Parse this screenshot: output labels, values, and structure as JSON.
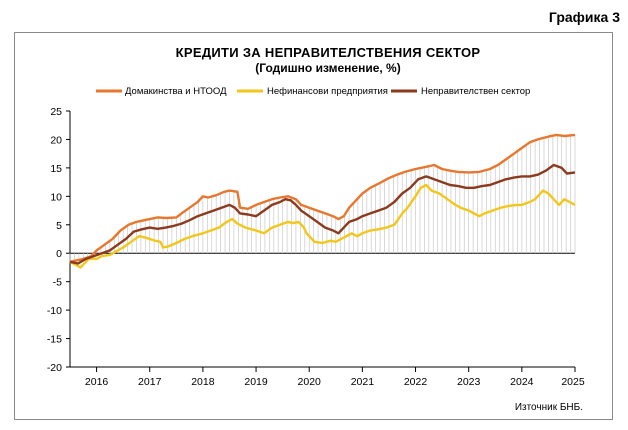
{
  "figure_label": "Графика 3",
  "chart_data": {
    "type": "line",
    "title": "КРЕДИТИ ЗА НЕПРАВИТЕЛСТВЕНИЯ  СЕКТОР",
    "subtitle": "(Годишно  изменение, %)",
    "source": "Източник БНБ.",
    "ylim": [
      -20,
      25
    ],
    "y_ticks": [
      25,
      20,
      15,
      10,
      5,
      0,
      -5,
      -10,
      -15,
      -20
    ],
    "x_ticks": [
      "2016",
      "2017",
      "2018",
      "2019",
      "2020",
      "2021",
      "2022",
      "2023",
      "2024",
      "2025"
    ],
    "x_start": 2015.5,
    "x_end": 2025.0,
    "grid": false,
    "legend_position": "top",
    "series": [
      {
        "name": "Домакинства и НТООД",
        "color": "#e8772e",
        "values": [
          [
            2015.5,
            -1.5
          ],
          [
            2015.75,
            -1.0
          ],
          [
            2015.9,
            -0.5
          ],
          [
            2016.0,
            0.5
          ],
          [
            2016.15,
            1.5
          ],
          [
            2016.3,
            2.5
          ],
          [
            2016.45,
            4.0
          ],
          [
            2016.6,
            5.0
          ],
          [
            2016.75,
            5.5
          ],
          [
            2016.9,
            5.8
          ],
          [
            2017.0,
            6.0
          ],
          [
            2017.15,
            6.3
          ],
          [
            2017.3,
            6.2
          ],
          [
            2017.5,
            6.3
          ],
          [
            2017.6,
            7.0
          ],
          [
            2017.75,
            8.0
          ],
          [
            2017.9,
            9.0
          ],
          [
            2018.0,
            10.0
          ],
          [
            2018.1,
            9.8
          ],
          [
            2018.25,
            10.2
          ],
          [
            2018.4,
            10.8
          ],
          [
            2018.5,
            11.0
          ],
          [
            2018.65,
            10.8
          ],
          [
            2018.7,
            8.0
          ],
          [
            2018.85,
            7.8
          ],
          [
            2019.0,
            8.5
          ],
          [
            2019.15,
            9.0
          ],
          [
            2019.3,
            9.5
          ],
          [
            2019.45,
            9.8
          ],
          [
            2019.6,
            10.0
          ],
          [
            2019.75,
            9.5
          ],
          [
            2019.85,
            8.5
          ],
          [
            2020.0,
            8.0
          ],
          [
            2020.15,
            7.5
          ],
          [
            2020.3,
            7.0
          ],
          [
            2020.45,
            6.5
          ],
          [
            2020.55,
            6.0
          ],
          [
            2020.65,
            6.5
          ],
          [
            2020.75,
            8.0
          ],
          [
            2020.9,
            9.5
          ],
          [
            2021.0,
            10.5
          ],
          [
            2021.15,
            11.5
          ],
          [
            2021.3,
            12.2
          ],
          [
            2021.5,
            13.2
          ],
          [
            2021.65,
            13.8
          ],
          [
            2021.8,
            14.3
          ],
          [
            2022.0,
            14.8
          ],
          [
            2022.2,
            15.2
          ],
          [
            2022.35,
            15.5
          ],
          [
            2022.5,
            14.8
          ],
          [
            2022.65,
            14.5
          ],
          [
            2022.8,
            14.3
          ],
          [
            2023.0,
            14.2
          ],
          [
            2023.2,
            14.3
          ],
          [
            2023.4,
            14.8
          ],
          [
            2023.55,
            15.5
          ],
          [
            2023.7,
            16.5
          ],
          [
            2023.85,
            17.5
          ],
          [
            2024.0,
            18.5
          ],
          [
            2024.15,
            19.5
          ],
          [
            2024.3,
            20.0
          ],
          [
            2024.5,
            20.5
          ],
          [
            2024.65,
            20.8
          ],
          [
            2024.8,
            20.6
          ],
          [
            2025.0,
            20.8
          ]
        ]
      },
      {
        "name": "Нефинансови предприятия",
        "color": "#f2c71b",
        "values": [
          [
            2015.5,
            -1.5
          ],
          [
            2015.6,
            -2.0
          ],
          [
            2015.7,
            -2.5
          ],
          [
            2015.85,
            -1.0
          ],
          [
            2016.0,
            -1.0
          ],
          [
            2016.1,
            -0.5
          ],
          [
            2016.25,
            -0.3
          ],
          [
            2016.4,
            0.5
          ],
          [
            2016.5,
            1.0
          ],
          [
            2016.65,
            2.0
          ],
          [
            2016.8,
            3.0
          ],
          [
            2016.9,
            2.8
          ],
          [
            2017.0,
            2.5
          ],
          [
            2017.1,
            2.2
          ],
          [
            2017.2,
            2.0
          ],
          [
            2017.25,
            1.0
          ],
          [
            2017.35,
            1.2
          ],
          [
            2017.5,
            1.8
          ],
          [
            2017.65,
            2.5
          ],
          [
            2017.8,
            3.0
          ],
          [
            2018.0,
            3.5
          ],
          [
            2018.15,
            4.0
          ],
          [
            2018.3,
            4.5
          ],
          [
            2018.45,
            5.5
          ],
          [
            2018.55,
            6.0
          ],
          [
            2018.65,
            5.2
          ],
          [
            2018.8,
            4.5
          ],
          [
            2019.0,
            4.0
          ],
          [
            2019.15,
            3.5
          ],
          [
            2019.3,
            4.5
          ],
          [
            2019.45,
            5.0
          ],
          [
            2019.6,
            5.5
          ],
          [
            2019.7,
            5.3
          ],
          [
            2019.8,
            5.5
          ],
          [
            2019.9,
            4.5
          ],
          [
            2019.95,
            3.5
          ],
          [
            2020.1,
            2.0
          ],
          [
            2020.25,
            1.8
          ],
          [
            2020.4,
            2.2
          ],
          [
            2020.5,
            2.0
          ],
          [
            2020.6,
            2.5
          ],
          [
            2020.7,
            3.0
          ],
          [
            2020.8,
            3.5
          ],
          [
            2020.9,
            3.0
          ],
          [
            2021.0,
            3.5
          ],
          [
            2021.15,
            4.0
          ],
          [
            2021.3,
            4.2
          ],
          [
            2021.45,
            4.5
          ],
          [
            2021.6,
            5.0
          ],
          [
            2021.75,
            7.0
          ],
          [
            2021.85,
            8.0
          ],
          [
            2022.0,
            10.0
          ],
          [
            2022.1,
            11.5
          ],
          [
            2022.2,
            12.0
          ],
          [
            2022.3,
            11.0
          ],
          [
            2022.45,
            10.5
          ],
          [
            2022.6,
            9.5
          ],
          [
            2022.75,
            8.5
          ],
          [
            2022.85,
            8.0
          ],
          [
            2023.0,
            7.5
          ],
          [
            2023.1,
            7.0
          ],
          [
            2023.2,
            6.5
          ],
          [
            2023.3,
            7.0
          ],
          [
            2023.45,
            7.5
          ],
          [
            2023.6,
            8.0
          ],
          [
            2023.75,
            8.3
          ],
          [
            2023.9,
            8.5
          ],
          [
            2024.0,
            8.5
          ],
          [
            2024.15,
            9.0
          ],
          [
            2024.25,
            9.5
          ],
          [
            2024.4,
            11.0
          ],
          [
            2024.5,
            10.5
          ],
          [
            2024.6,
            9.5
          ],
          [
            2024.7,
            8.5
          ],
          [
            2024.8,
            9.5
          ],
          [
            2024.9,
            9.0
          ],
          [
            2025.0,
            8.5
          ]
        ]
      },
      {
        "name": "Неправителствен сектор",
        "color": "#8b3a1e",
        "values": [
          [
            2015.5,
            -1.5
          ],
          [
            2015.65,
            -1.8
          ],
          [
            2015.8,
            -1.0
          ],
          [
            2015.95,
            -0.5
          ],
          [
            2016.1,
            0.0
          ],
          [
            2016.25,
            0.5
          ],
          [
            2016.4,
            1.5
          ],
          [
            2016.55,
            2.5
          ],
          [
            2016.7,
            3.8
          ],
          [
            2016.85,
            4.2
          ],
          [
            2017.0,
            4.5
          ],
          [
            2017.15,
            4.3
          ],
          [
            2017.3,
            4.5
          ],
          [
            2017.45,
            4.8
          ],
          [
            2017.6,
            5.2
          ],
          [
            2017.75,
            5.8
          ],
          [
            2017.9,
            6.5
          ],
          [
            2018.05,
            7.0
          ],
          [
            2018.2,
            7.5
          ],
          [
            2018.35,
            8.0
          ],
          [
            2018.5,
            8.5
          ],
          [
            2018.6,
            8.0
          ],
          [
            2018.7,
            7.0
          ],
          [
            2018.85,
            6.8
          ],
          [
            2019.0,
            6.5
          ],
          [
            2019.15,
            7.5
          ],
          [
            2019.3,
            8.5
          ],
          [
            2019.45,
            9.0
          ],
          [
            2019.55,
            9.5
          ],
          [
            2019.65,
            9.3
          ],
          [
            2019.75,
            8.5
          ],
          [
            2019.85,
            7.5
          ],
          [
            2020.0,
            6.5
          ],
          [
            2020.15,
            5.5
          ],
          [
            2020.3,
            4.5
          ],
          [
            2020.45,
            4.0
          ],
          [
            2020.55,
            3.5
          ],
          [
            2020.65,
            4.5
          ],
          [
            2020.75,
            5.5
          ],
          [
            2020.9,
            6.0
          ],
          [
            2021.0,
            6.5
          ],
          [
            2021.15,
            7.0
          ],
          [
            2021.3,
            7.5
          ],
          [
            2021.45,
            8.0
          ],
          [
            2021.6,
            9.0
          ],
          [
            2021.75,
            10.5
          ],
          [
            2021.9,
            11.5
          ],
          [
            2022.05,
            13.0
          ],
          [
            2022.2,
            13.5
          ],
          [
            2022.35,
            13.0
          ],
          [
            2022.5,
            12.5
          ],
          [
            2022.65,
            12.0
          ],
          [
            2022.8,
            11.8
          ],
          [
            2022.95,
            11.5
          ],
          [
            2023.1,
            11.5
          ],
          [
            2023.25,
            11.8
          ],
          [
            2023.4,
            12.0
          ],
          [
            2023.55,
            12.5
          ],
          [
            2023.7,
            13.0
          ],
          [
            2023.85,
            13.3
          ],
          [
            2024.0,
            13.5
          ],
          [
            2024.15,
            13.5
          ],
          [
            2024.3,
            13.8
          ],
          [
            2024.45,
            14.5
          ],
          [
            2024.6,
            15.5
          ],
          [
            2024.75,
            15.0
          ],
          [
            2024.85,
            14.0
          ],
          [
            2025.0,
            14.2
          ]
        ]
      }
    ]
  }
}
